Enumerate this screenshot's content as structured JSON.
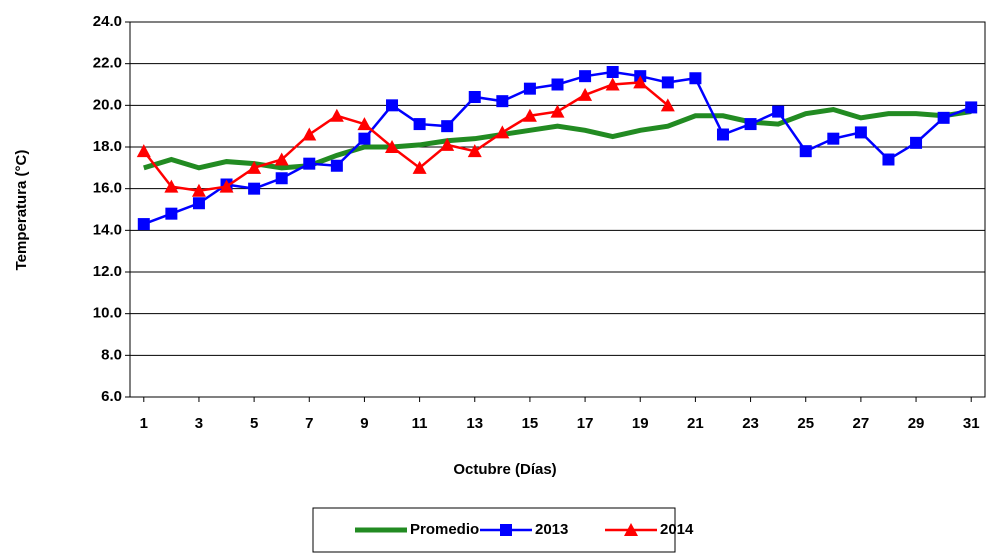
{
  "chart_data": {
    "type": "line",
    "x_label": "Octubre (Días)",
    "y_label": "Temperatura (°C)",
    "x": [
      1,
      2,
      3,
      4,
      5,
      6,
      7,
      8,
      9,
      10,
      11,
      12,
      13,
      14,
      15,
      16,
      17,
      18,
      19,
      20,
      21,
      22,
      23,
      24,
      25,
      26,
      27,
      28,
      29,
      30,
      31
    ],
    "xlim": [
      0.5,
      31.5
    ],
    "xticks": [
      1,
      3,
      5,
      7,
      9,
      11,
      13,
      15,
      17,
      19,
      21,
      23,
      25,
      27,
      29,
      31
    ],
    "ylim": [
      6,
      24
    ],
    "yticks": [
      {
        "value": 6,
        "label": "6.0"
      },
      {
        "value": 8,
        "label": "8.0"
      },
      {
        "value": 10,
        "label": "10.0"
      },
      {
        "value": 12,
        "label": "12.0"
      },
      {
        "value": 14,
        "label": "14.0"
      },
      {
        "value": 16,
        "label": "16.0"
      },
      {
        "value": 18,
        "label": "18.0"
      },
      {
        "value": 20,
        "label": "20.0"
      },
      {
        "value": 22,
        "label": "22.0"
      },
      {
        "value": 24,
        "label": "24.0"
      }
    ],
    "grid": true,
    "legend": "bottom",
    "series": [
      {
        "name": "Promedio",
        "color": "#228b22",
        "marker": "none",
        "values": [
          17.0,
          17.4,
          17.0,
          17.3,
          17.2,
          17.0,
          17.1,
          17.6,
          18.0,
          18.0,
          18.1,
          18.3,
          18.4,
          18.6,
          18.8,
          19.0,
          18.8,
          18.5,
          18.8,
          19.0,
          19.5,
          19.5,
          19.2,
          19.1,
          19.6,
          19.8,
          19.4,
          19.6,
          19.6,
          19.5,
          19.7
        ]
      },
      {
        "name": "2013",
        "color": "#0000ff",
        "marker": "square",
        "values": [
          14.3,
          14.8,
          15.3,
          16.2,
          16.0,
          16.5,
          17.2,
          17.1,
          18.4,
          20.0,
          19.1,
          19.0,
          20.4,
          20.2,
          20.8,
          21.0,
          21.4,
          21.6,
          21.4,
          21.1,
          21.3,
          18.6,
          19.1,
          19.7,
          17.8,
          18.4,
          18.7,
          17.4,
          18.2,
          19.4,
          19.9
        ]
      },
      {
        "name": "2014",
        "color": "#ff0000",
        "marker": "triangle",
        "values": [
          17.8,
          16.1,
          15.9,
          16.1,
          17.0,
          17.4,
          18.6,
          19.5,
          19.1,
          18.0,
          17.0,
          18.1,
          17.8,
          18.7,
          19.5,
          19.7,
          20.5,
          21.0,
          21.1,
          20.0,
          null,
          null,
          null,
          null,
          null,
          null,
          null,
          null,
          null,
          null,
          null
        ]
      }
    ]
  }
}
